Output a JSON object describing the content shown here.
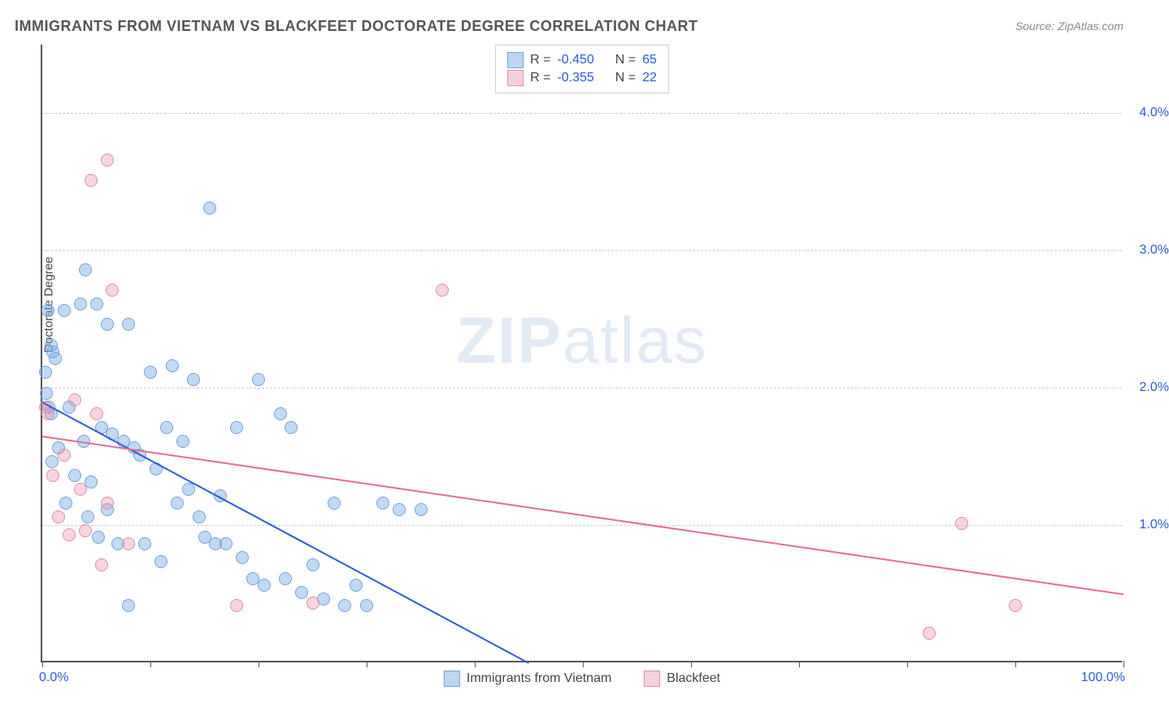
{
  "title": "IMMIGRANTS FROM VIETNAM VS BLACKFEET DOCTORATE DEGREE CORRELATION CHART",
  "source": "Source: ZipAtlas.com",
  "watermark_bold": "ZIP",
  "watermark_light": "atlas",
  "chart": {
    "type": "scatter",
    "ylabel": "Doctorate Degree",
    "xlim": [
      0,
      100
    ],
    "ylim": [
      0,
      4.5
    ],
    "x_tick_labels": {
      "min": "0.0%",
      "max": "100.0%"
    },
    "x_tick_positions": [
      0,
      10,
      20,
      30,
      40,
      50,
      60,
      70,
      80,
      90,
      100
    ],
    "y_gridlines": [
      1.0,
      2.0,
      3.0,
      4.0
    ],
    "y_tick_labels": [
      "1.0%",
      "2.0%",
      "3.0%",
      "4.0%"
    ],
    "background_color": "#ffffff",
    "grid_color": "#cccccc",
    "axis_color": "#555555",
    "tick_label_color": "#2a5bd7",
    "marker_radius": 8,
    "marker_opacity": 0.55,
    "series": [
      {
        "name": "Immigrants from Vietnam",
        "color_fill": "rgba(120,170,230,0.45)",
        "color_stroke": "#6fa3e0",
        "legend_swatch_fill": "#bcd5f2",
        "legend_swatch_stroke": "#6fa3e0",
        "R": "-0.450",
        "N": "65",
        "trend": {
          "x1": 0,
          "y1": 1.9,
          "x2": 45,
          "y2": 0.0,
          "color": "#2a5bd7",
          "width": 2
        },
        "points": [
          [
            0.5,
            2.55
          ],
          [
            1.0,
            2.25
          ],
          [
            0.8,
            2.3
          ],
          [
            1.2,
            2.2
          ],
          [
            0.3,
            2.1
          ],
          [
            0.4,
            1.95
          ],
          [
            0.6,
            1.85
          ],
          [
            0.8,
            1.8
          ],
          [
            2.0,
            2.55
          ],
          [
            3.5,
            2.6
          ],
          [
            4.0,
            2.85
          ],
          [
            5.0,
            2.6
          ],
          [
            6.0,
            2.45
          ],
          [
            8.0,
            2.45
          ],
          [
            10.0,
            2.1
          ],
          [
            12.0,
            2.15
          ],
          [
            14.0,
            2.05
          ],
          [
            15.5,
            3.3
          ],
          [
            18.0,
            1.7
          ],
          [
            20.0,
            2.05
          ],
          [
            22.0,
            1.8
          ],
          [
            5.5,
            1.7
          ],
          [
            6.5,
            1.65
          ],
          [
            7.5,
            1.6
          ],
          [
            8.5,
            1.55
          ],
          [
            9.0,
            1.5
          ],
          [
            10.5,
            1.4
          ],
          [
            12.5,
            1.15
          ],
          [
            13.5,
            1.25
          ],
          [
            14.5,
            1.05
          ],
          [
            15.0,
            0.9
          ],
          [
            16.0,
            0.85
          ],
          [
            17.0,
            0.85
          ],
          [
            18.5,
            0.75
          ],
          [
            19.5,
            0.6
          ],
          [
            20.5,
            0.55
          ],
          [
            22.5,
            0.6
          ],
          [
            24.0,
            0.5
          ],
          [
            26.0,
            0.45
          ],
          [
            28.0,
            0.4
          ],
          [
            30.0,
            0.4
          ],
          [
            31.5,
            1.15
          ],
          [
            33.0,
            1.1
          ],
          [
            35.0,
            1.1
          ],
          [
            27.0,
            1.15
          ],
          [
            3.0,
            1.35
          ],
          [
            4.5,
            1.3
          ],
          [
            6.0,
            1.1
          ],
          [
            7.0,
            0.85
          ],
          [
            8.0,
            0.4
          ],
          [
            9.5,
            0.85
          ],
          [
            11.0,
            0.72
          ],
          [
            2.5,
            1.85
          ],
          [
            3.8,
            1.6
          ],
          [
            0.9,
            1.45
          ],
          [
            1.5,
            1.55
          ],
          [
            2.2,
            1.15
          ],
          [
            4.2,
            1.05
          ],
          [
            5.2,
            0.9
          ],
          [
            11.5,
            1.7
          ],
          [
            13.0,
            1.6
          ],
          [
            16.5,
            1.2
          ],
          [
            23.0,
            1.7
          ],
          [
            25.0,
            0.7
          ],
          [
            29.0,
            0.55
          ]
        ]
      },
      {
        "name": "Blackfeet",
        "color_fill": "rgba(240,150,180,0.40)",
        "color_stroke": "#e28ba8",
        "legend_swatch_fill": "#f6d0dc",
        "legend_swatch_stroke": "#e28ba8",
        "R": "-0.355",
        "N": "22",
        "trend": {
          "x1": 0,
          "y1": 1.65,
          "x2": 100,
          "y2": 0.5,
          "color": "#e56b8f",
          "width": 2
        },
        "points": [
          [
            6.0,
            3.65
          ],
          [
            4.5,
            3.5
          ],
          [
            6.5,
            2.7
          ],
          [
            37.0,
            2.7
          ],
          [
            0.3,
            1.85
          ],
          [
            0.5,
            1.8
          ],
          [
            3.0,
            1.9
          ],
          [
            5.0,
            1.8
          ],
          [
            2.0,
            1.5
          ],
          [
            1.0,
            1.35
          ],
          [
            3.5,
            1.25
          ],
          [
            6.0,
            1.15
          ],
          [
            1.5,
            1.05
          ],
          [
            4.0,
            0.95
          ],
          [
            2.5,
            0.92
          ],
          [
            5.5,
            0.7
          ],
          [
            8.0,
            0.85
          ],
          [
            18.0,
            0.4
          ],
          [
            25.0,
            0.42
          ],
          [
            85.0,
            1.0
          ],
          [
            90.0,
            0.4
          ],
          [
            82.0,
            0.2
          ]
        ]
      }
    ]
  },
  "legend_top_labels": {
    "R": "R =",
    "N": "N ="
  },
  "legend_bottom": [
    "Immigrants from Vietnam",
    "Blackfeet"
  ]
}
